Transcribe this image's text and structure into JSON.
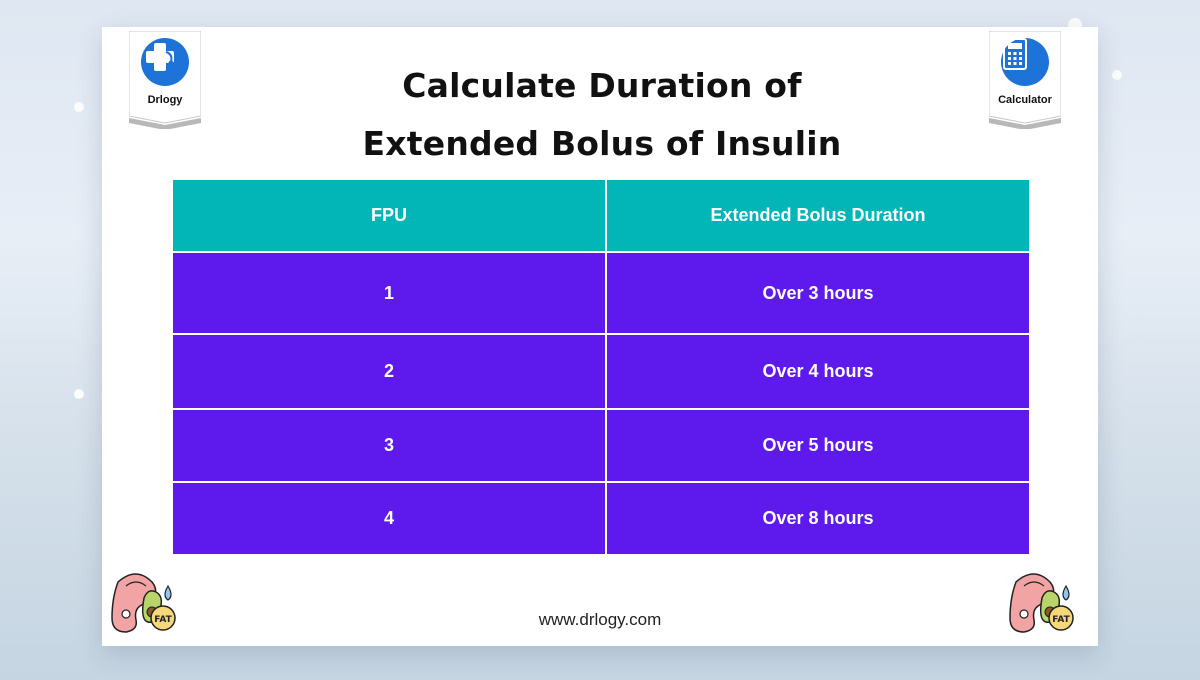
{
  "title_lines": [
    "Calculate Duration of",
    "Extended Bolus of Insulin"
  ],
  "badges": {
    "left": {
      "label": "Drlogy",
      "icon": "doctor-stethoscope-icon"
    },
    "right": {
      "label": "Calculator",
      "icon": "calculator-icon"
    }
  },
  "table": {
    "headers": [
      "FPU",
      "Extended Bolus Duration"
    ],
    "rows": [
      [
        "1",
        "Over 3 hours"
      ],
      [
        "2",
        "Over 4 hours"
      ],
      [
        "3",
        "Over 5 hours"
      ],
      [
        "4",
        "Over 8 hours"
      ]
    ]
  },
  "footer": {
    "url": "www.drlogy.com"
  },
  "colors": {
    "header": "#02b6b8",
    "rows": "#5e19ec",
    "badge": "#1e73d8"
  },
  "decor_icons": [
    "fat-food-icon",
    "fat-food-icon"
  ]
}
